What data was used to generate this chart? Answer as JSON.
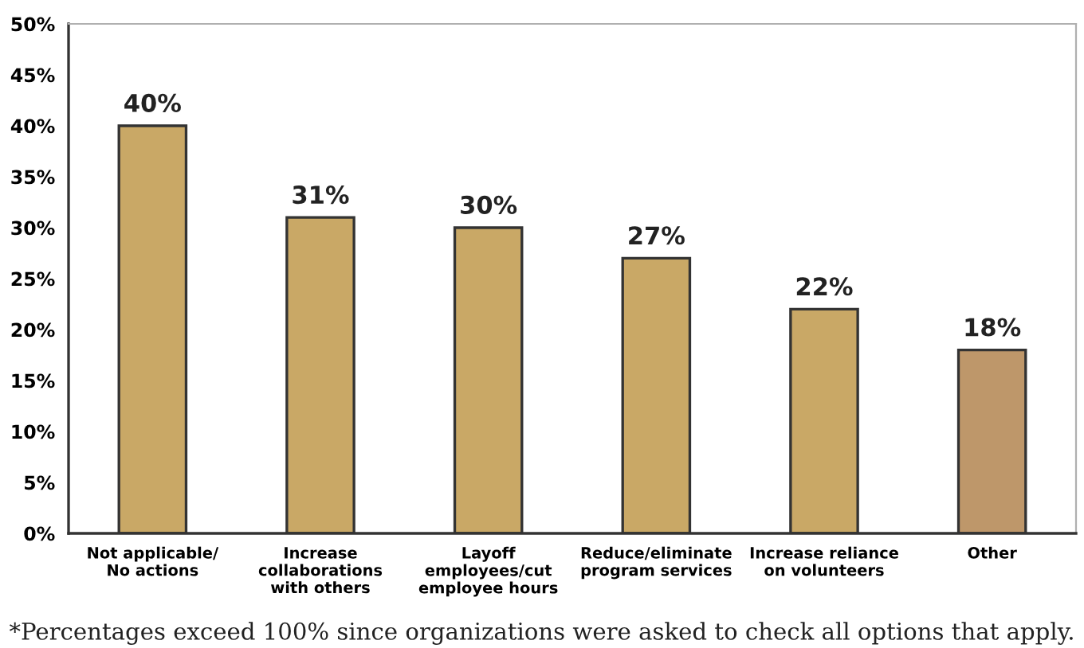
{
  "chart_data": {
    "type": "bar",
    "categories": [
      "Not applicable/\nNo actions",
      "Increase\ncollaborations\nwith others",
      "Layoff\nemployees/cut\nemployee hours",
      "Reduce/eliminate\nprogram services",
      "Increase reliance\non volunteers",
      "Other"
    ],
    "values": [
      40,
      31,
      30,
      27,
      22,
      18
    ],
    "colors": [
      "#c9a866",
      "#c9a866",
      "#c9a866",
      "#c9a866",
      "#c9a866",
      "#be976a"
    ],
    "value_labels": [
      "40%",
      "31%",
      "30%",
      "27%",
      "22%",
      "18%"
    ],
    "ylim": [
      0,
      50
    ],
    "yticks": [
      {
        "value": 0,
        "label": "0%"
      },
      {
        "value": 5,
        "label": "5%"
      },
      {
        "value": 10,
        "label": "10%"
      },
      {
        "value": 15,
        "label": "15%"
      },
      {
        "value": 20,
        "label": "20%"
      },
      {
        "value": 25,
        "label": "25%"
      },
      {
        "value": 30,
        "label": "30%"
      },
      {
        "value": 35,
        "label": "35%"
      },
      {
        "value": 40,
        "label": "40%"
      },
      {
        "value": 45,
        "label": "45%"
      },
      {
        "value": 50,
        "label": "50%"
      }
    ],
    "grid": false,
    "annotations": [
      "*Percentages exceed 100% since organizations were asked to check all options that apply."
    ]
  }
}
